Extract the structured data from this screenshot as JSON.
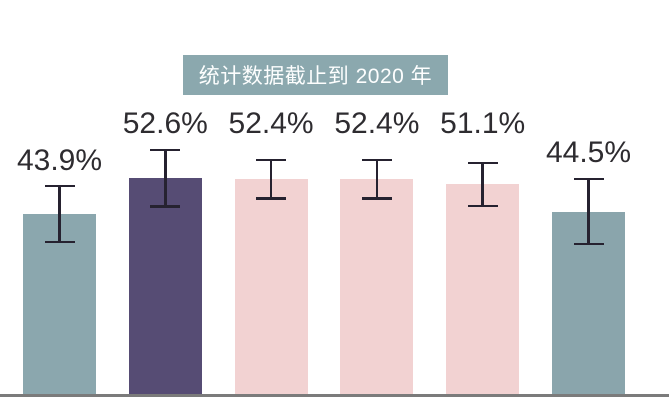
{
  "header": {
    "title": "统计数据截止到 2020 年"
  },
  "chart_data": {
    "type": "bar",
    "title": "统计数据截止到 2020 年",
    "values": [
      43.9,
      52.6,
      52.4,
      52.4,
      51.1,
      44.5
    ],
    "labels": [
      "43.9%",
      "52.6%",
      "52.4%",
      "52.4%",
      "51.1%",
      "44.5%"
    ],
    "error_plus_minus": [
      7.1,
      7.2,
      5.0,
      5.0,
      5.6,
      8.2
    ],
    "unit": "%",
    "ylim": [
      0,
      96
    ],
    "grid": false,
    "legend": "none",
    "xlabel": "",
    "ylabel": "",
    "bar_colors": [
      "#8BA7AE",
      "#564C74",
      "#F2D2D2",
      "#F2D2D2",
      "#F2D2D2",
      "#8AA5AC"
    ],
    "colors": {
      "error_bar": "#262230",
      "baseline": "#7B7B7B",
      "label_text": "#2E2C30",
      "title_bg": "#8BA8AE",
      "title_text": "#FDFEFE",
      "background": "#FFFFFF"
    }
  }
}
